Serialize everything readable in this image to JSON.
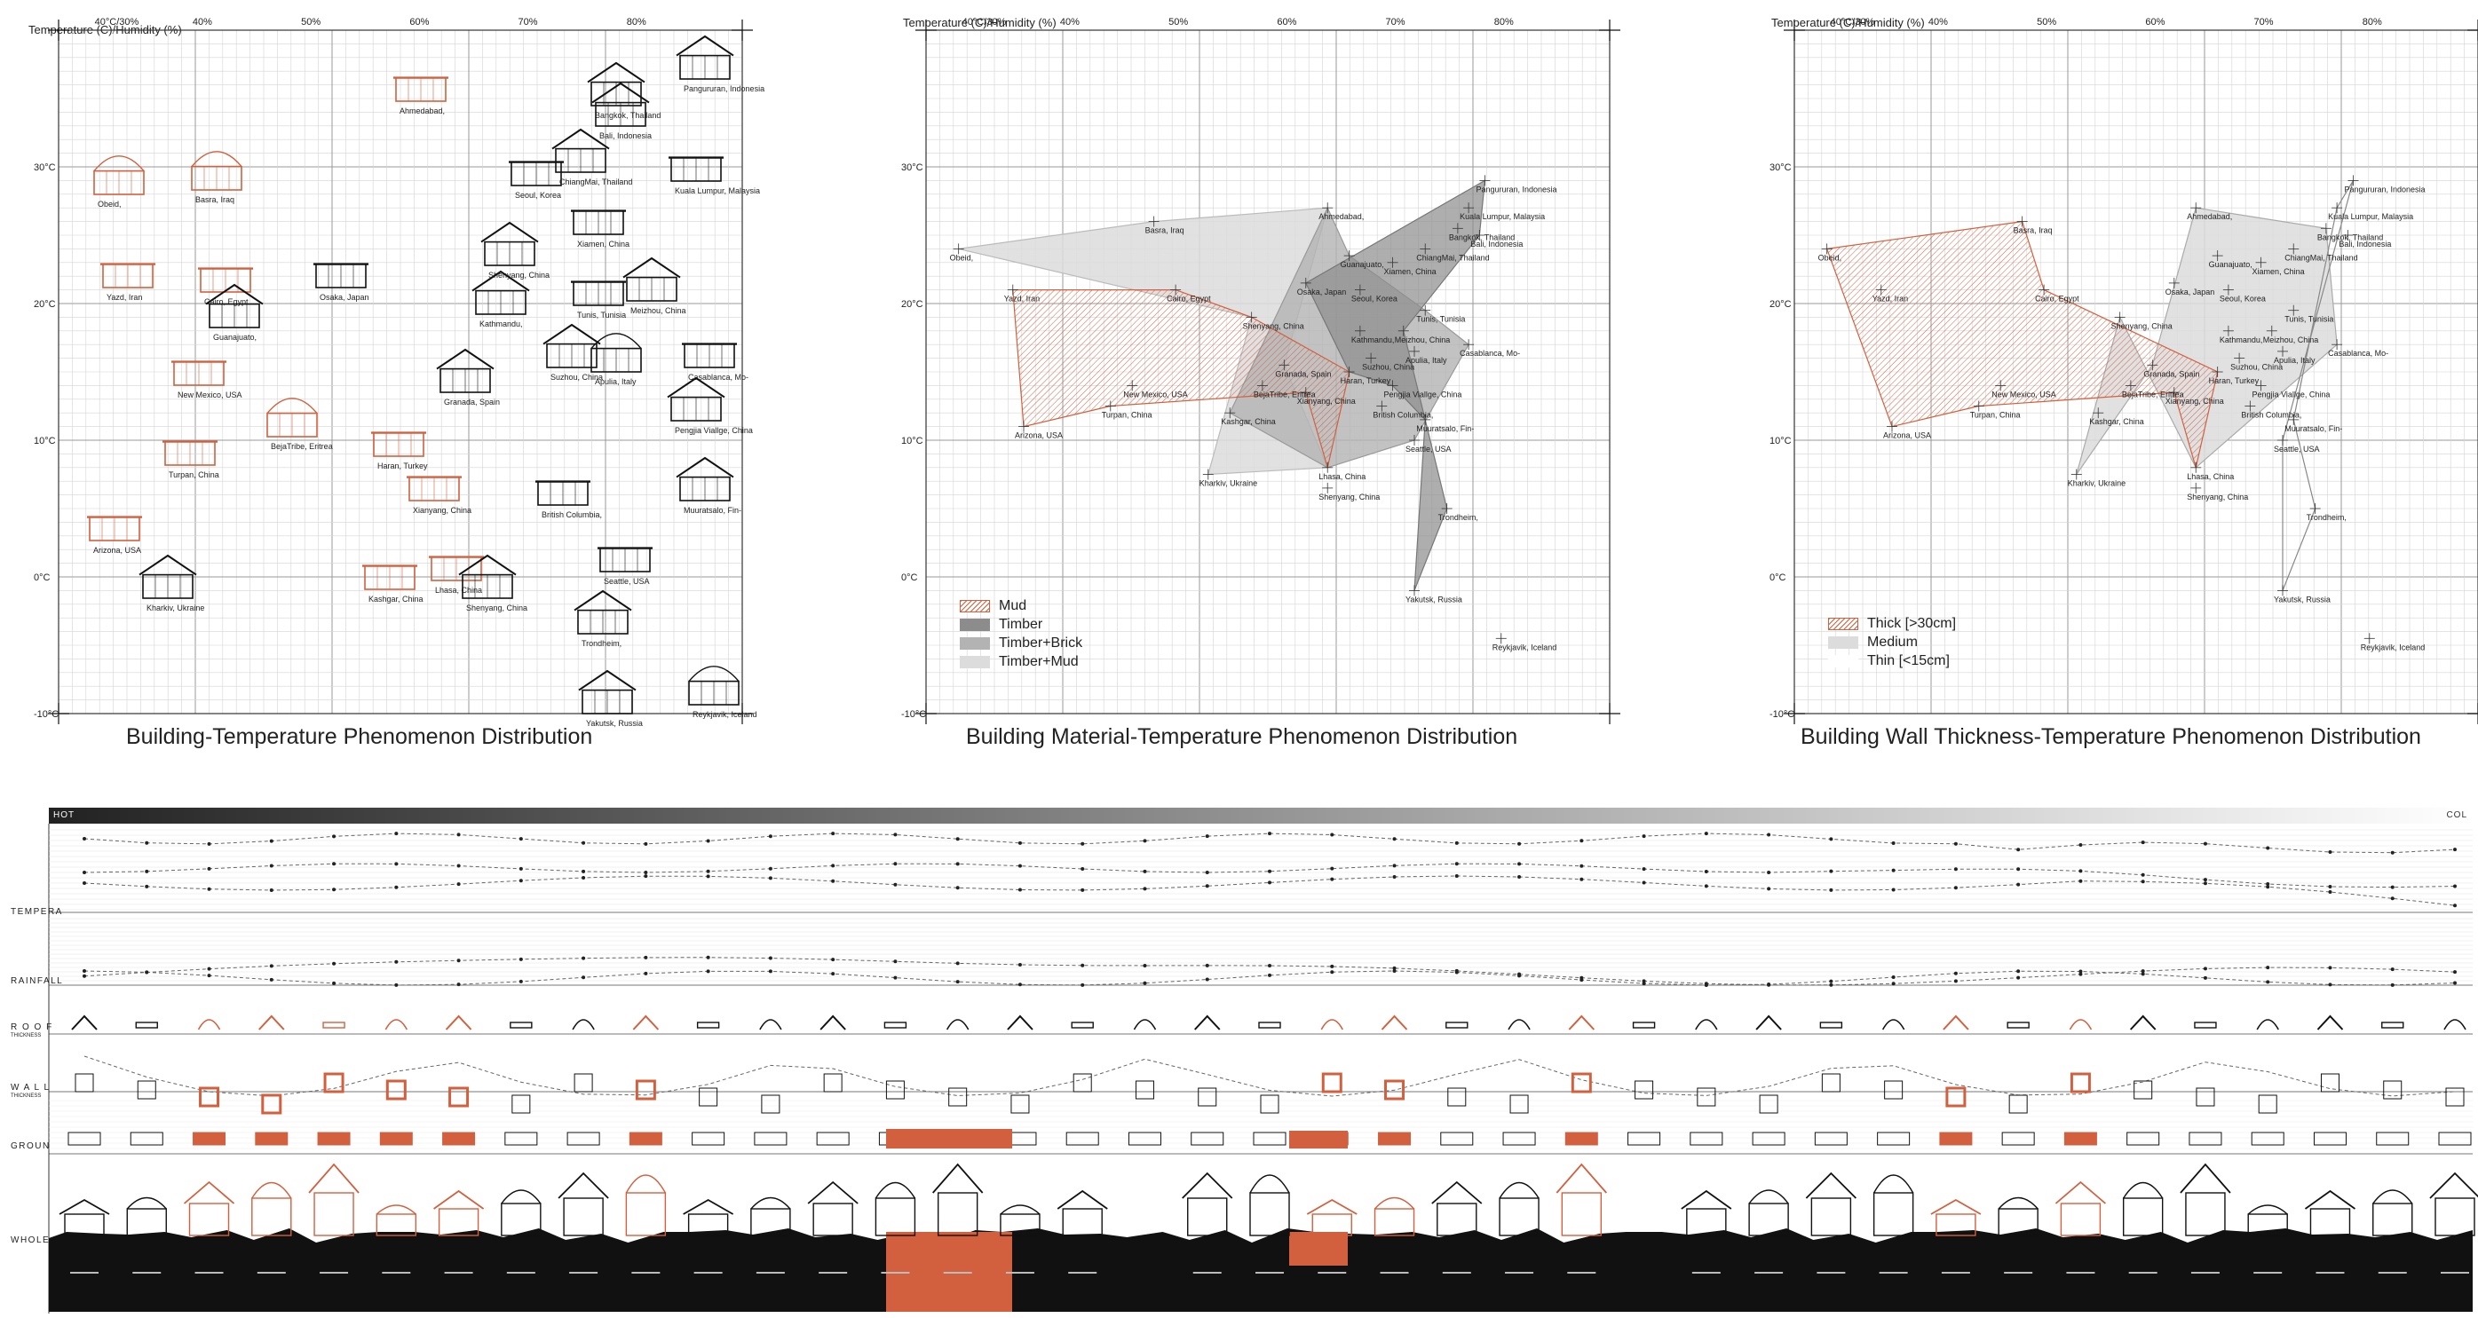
{
  "axes": {
    "y_caption": "Temperature (C)/Humidity (%)",
    "x_ticks": [
      "40°C/30%",
      "40%",
      "50%",
      "60%",
      "70%",
      "80%"
    ],
    "y_ticks": [
      "30°C",
      "20°C",
      "10°C",
      "0°C",
      "-10°C"
    ]
  },
  "panels": [
    {
      "title": "Building-Temperature Phenomenon Distribution"
    },
    {
      "title": "Building Material-Temperature Phenomenon Distribution",
      "legend": [
        "Mud",
        "Timber",
        "Timber+Brick",
        "Timber+Mud"
      ]
    },
    {
      "title": "Building Wall Thickness-Temperature Phenomenon Distribution",
      "legend": [
        "Thick [>30cm]",
        "Medium",
        "Thin [<15cm]"
      ]
    }
  ],
  "cities": [
    {
      "name": "Obeid,",
      "hum": 30,
      "temp": 24
    },
    {
      "name": "Basra, Iraq",
      "hum": 48,
      "temp": 26
    },
    {
      "name": "Yazd, Iran",
      "hum": 35,
      "temp": 21
    },
    {
      "name": "Cairo, Egypt",
      "hum": 50,
      "temp": 21
    },
    {
      "name": "Arizona, USA",
      "hum": 36,
      "temp": 11
    },
    {
      "name": "New Mexico, USA",
      "hum": 46,
      "temp": 14
    },
    {
      "name": "Turpan, China",
      "hum": 44,
      "temp": 12.5
    },
    {
      "name": "Ahmedabad,",
      "hum": 64,
      "temp": 27
    },
    {
      "name": "Shenyang, China",
      "hum": 57,
      "temp": 19
    },
    {
      "name": "Kashgar, China",
      "hum": 55,
      "temp": 12
    },
    {
      "name": "Kharkiv, Ukraine",
      "hum": 53,
      "temp": 7.5
    },
    {
      "name": "Lhasa, China",
      "hum": 64,
      "temp": 8
    },
    {
      "name": "Shenyang, China",
      "hum": 64,
      "temp": 6.5
    },
    {
      "name": "Granada, Spain",
      "hum": 60,
      "temp": 15.5
    },
    {
      "name": "Haran, Turkey",
      "hum": 66,
      "temp": 15
    },
    {
      "name": "Xianyang, China",
      "hum": 62,
      "temp": 13.5
    },
    {
      "name": "BejaTribe, Eritrea",
      "hum": 58,
      "temp": 14
    },
    {
      "name": "Osaka, Japan",
      "hum": 62,
      "temp": 21.5
    },
    {
      "name": "Guanajuato,",
      "hum": 66,
      "temp": 23.5
    },
    {
      "name": "Seoul, Korea",
      "hum": 67,
      "temp": 21
    },
    {
      "name": "Xiamen, China",
      "hum": 70,
      "temp": 23
    },
    {
      "name": "ChiangMai, Thailand",
      "hum": 73,
      "temp": 24
    },
    {
      "name": "Bangkok, Thailand",
      "hum": 76,
      "temp": 25.5
    },
    {
      "name": "Bali, Indonesia",
      "hum": 78,
      "temp": 25
    },
    {
      "name": "Kuala Lumpur, Malaysia",
      "hum": 77,
      "temp": 27
    },
    {
      "name": "Pangururan, Indonesia",
      "hum": 78.5,
      "temp": 29
    },
    {
      "name": "Tunis, Tunisia",
      "hum": 73,
      "temp": 19.5
    },
    {
      "name": "Kathmandu,",
      "hum": 67,
      "temp": 18
    },
    {
      "name": "Meizhou, China",
      "hum": 71,
      "temp": 18
    },
    {
      "name": "Suzhou, China",
      "hum": 68,
      "temp": 16
    },
    {
      "name": "Apulia, Italy",
      "hum": 72,
      "temp": 16.5
    },
    {
      "name": "Casablanca, Mo-",
      "hum": 77,
      "temp": 17
    },
    {
      "name": "Pengjia Viallge, China",
      "hum": 70,
      "temp": 14
    },
    {
      "name": "British Columbia,",
      "hum": 69,
      "temp": 12.5
    },
    {
      "name": "Muuratsalo, Fin-",
      "hum": 73,
      "temp": 11.5
    },
    {
      "name": "Seattle, USA",
      "hum": 72,
      "temp": 10
    },
    {
      "name": "Trondheim,",
      "hum": 75,
      "temp": 5
    },
    {
      "name": "Yakutsk, Russia",
      "hum": 72,
      "temp": -1
    },
    {
      "name": "Reykjavik, Iceland",
      "hum": 80,
      "temp": -4.5
    }
  ],
  "bottom": {
    "gradient_start": "HOT",
    "gradient_end": "COL",
    "rows": [
      "TEMPERA",
      "RAINFALL",
      "R O O F",
      "W A L L",
      "GROUN",
      "WHOLE"
    ],
    "row_sub": [
      "THICKNESS",
      "THICKNESS"
    ]
  },
  "colors": {
    "accent": "#d2603e",
    "grid": "#c8c8c8",
    "gray": "#9a9a9a"
  }
}
